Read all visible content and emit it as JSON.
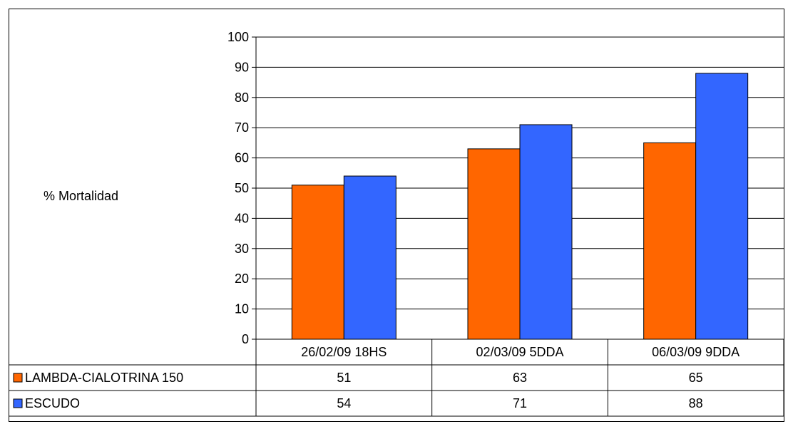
{
  "chart_data": {
    "type": "bar",
    "ylabel": "% Mortalidad",
    "ylim": [
      0,
      100
    ],
    "yticks": [
      0,
      10,
      20,
      30,
      40,
      50,
      60,
      70,
      80,
      90,
      100
    ],
    "categories": [
      "26/02/09 18HS",
      "02/03/09 5DDA",
      "06/03/09 9DDA"
    ],
    "series": [
      {
        "name": "LAMBDA-CIALOTRINA 150",
        "values": [
          51,
          63,
          65
        ],
        "table_values": [
          "51",
          "63",
          "65"
        ],
        "color": "#ff6600"
      },
      {
        "name": "ESCUDO",
        "values": [
          54,
          71,
          88
        ],
        "table_values": [
          "54",
          "71",
          "88"
        ],
        "color": "#3366ff"
      }
    ],
    "grid": true,
    "legend": "data-table"
  }
}
